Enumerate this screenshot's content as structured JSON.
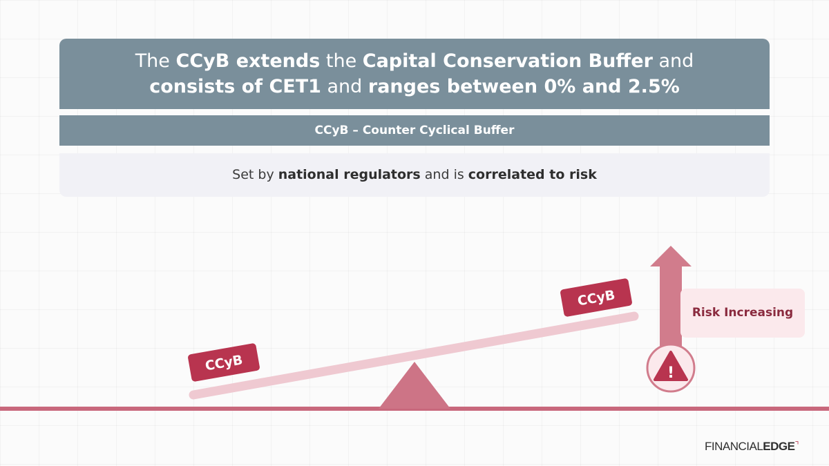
{
  "header": {
    "line1": [
      {
        "text": "The ",
        "bold": false
      },
      {
        "text": "CCyB extends",
        "bold": true
      },
      {
        "text": " the ",
        "bold": false
      },
      {
        "text": "Capital Conservation Buffer",
        "bold": true
      },
      {
        "text": " and",
        "bold": false
      }
    ],
    "line2": [
      {
        "text": "consists of CET1",
        "bold": true
      },
      {
        "text": " and ",
        "bold": false
      },
      {
        "text": "ranges between 0% and 2.5%",
        "bold": true
      }
    ]
  },
  "subtitle": "CCyB – Counter Cyclical Buffer",
  "info": [
    {
      "text": "Set by ",
      "bold": false
    },
    {
      "text": "national regulators",
      "bold": true
    },
    {
      "text": " and is ",
      "bold": false
    },
    {
      "text": "correlated to risk",
      "bold": true
    }
  ],
  "seesaw": {
    "left_label": "CCyB",
    "right_label": "CCyB"
  },
  "risk": {
    "label": "Risk Increasing",
    "warning_symbol": "!"
  },
  "logo": {
    "part1": "FINANCIAL",
    "part2": "EDGE"
  },
  "colors": {
    "header_bg": "#7a8f9b",
    "accent": "#b8344f",
    "seesaw_beam": "#efc9d1",
    "fulcrum": "#cd7486",
    "arrow": "#d17c8c"
  }
}
